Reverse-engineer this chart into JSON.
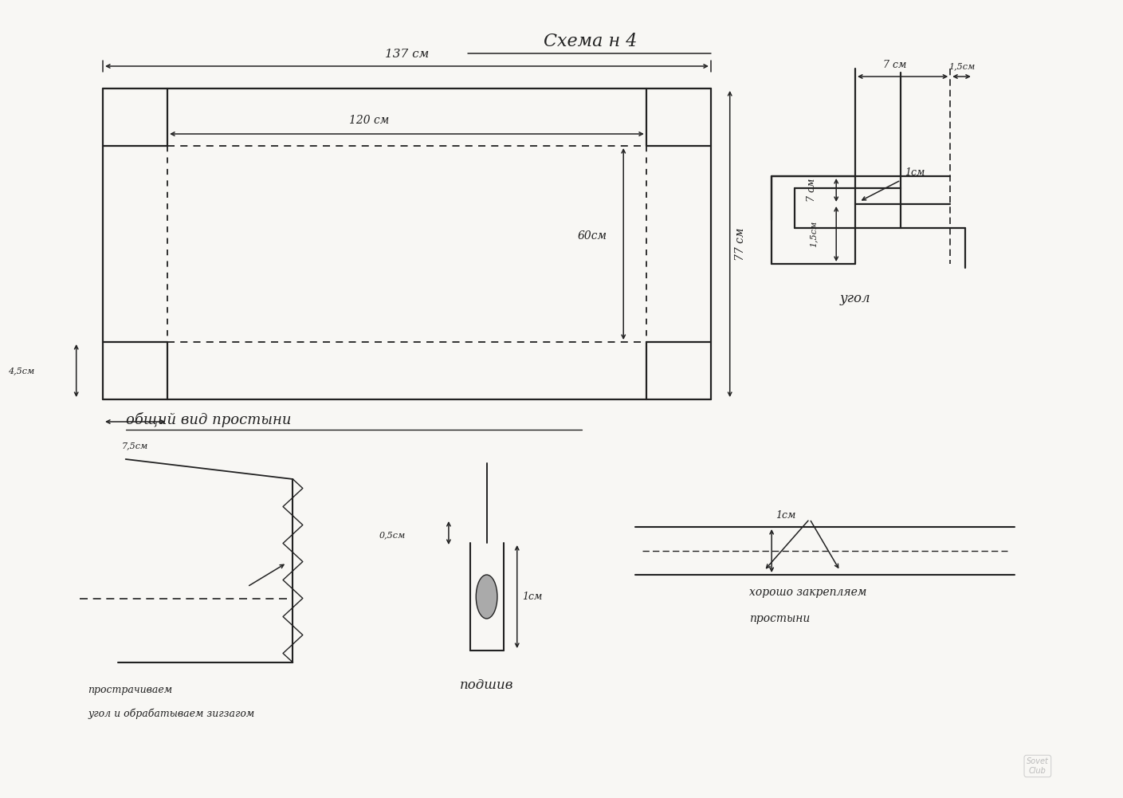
{
  "bg_color": "#f8f7f4",
  "lc": "#222222",
  "title": "Схема н 4",
  "caption_main": "общий вид простыни",
  "label_137": "137 см",
  "label_120": "120 см",
  "label_77": "77 см",
  "label_60": "60см",
  "label_45": "4,5см",
  "label_75": "7,5см",
  "label_7cm_h": "7 см",
  "label_15cm_h": "1,5см",
  "label_7cm_v": "7 см",
  "label_15cm_v": "1,5см",
  "label_1cm_corner": "1см",
  "label_ugol": "угол",
  "label_podshiv": "подшив",
  "label_1cm_podshiv": "1см",
  "label_05cm": "0,5см",
  "label_1cm_br": "1см",
  "label_horosho": "хорошо закрепляем",
  "label_prostini": "простыни",
  "label_prostrachiv": "прострачиваем",
  "label_ugol_zigzag": "угол и обрабатываем зигзагом"
}
